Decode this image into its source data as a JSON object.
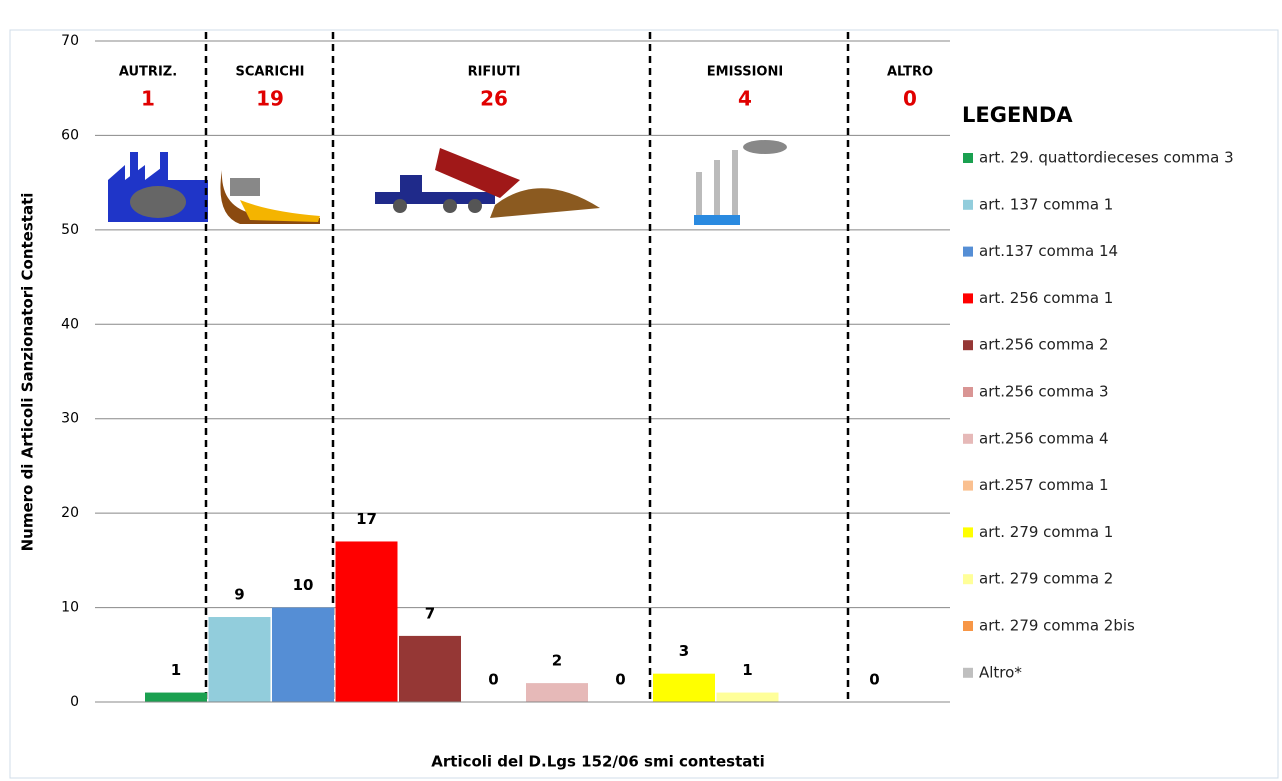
{
  "chart_data": {
    "type": "bar",
    "x_label": "Articoli del D.Lgs 152/06 smi contestati",
    "y_label": "Numero di Articoli  Sanzionatori Contestati",
    "legend_title": "LEGENDA",
    "categories": [
      "art. 29. quattordieceses comma 3",
      "art. 137 comma 1",
      "art.137 comma 14",
      "art. 256 comma 1",
      "art.256 comma 2",
      "art.256 comma 3",
      "art.256 comma 4",
      "art.257 comma 1",
      "art. 279 comma 1",
      "art. 279 comma 2",
      "art. 279 comma 2bis",
      "Altro*"
    ],
    "colors": [
      "#1aa050",
      "#92cddc",
      "#558ed5",
      "#ff0000",
      "#953735",
      "#d99594",
      "#e6b9b8",
      "#fac090",
      "#ffff00",
      "#ffff99",
      "#f79646",
      "#bfbfbf"
    ],
    "values": [
      1,
      9,
      10,
      17,
      7,
      0,
      2,
      0,
      3,
      1,
      null,
      0
    ],
    "groups": [
      {
        "name": "AUTRIZ.",
        "total": 1
      },
      {
        "name": "SCARICHI",
        "total": 19
      },
      {
        "name": "RIFIUTI",
        "total": 26
      },
      {
        "name": "EMISSIONI",
        "total": 4
      },
      {
        "name": "ALTRO",
        "total": 0
      }
    ],
    "ylim": [
      0,
      70
    ],
    "yticks": [
      0,
      10,
      20,
      30,
      40,
      50,
      60,
      70
    ],
    "grid": true
  }
}
